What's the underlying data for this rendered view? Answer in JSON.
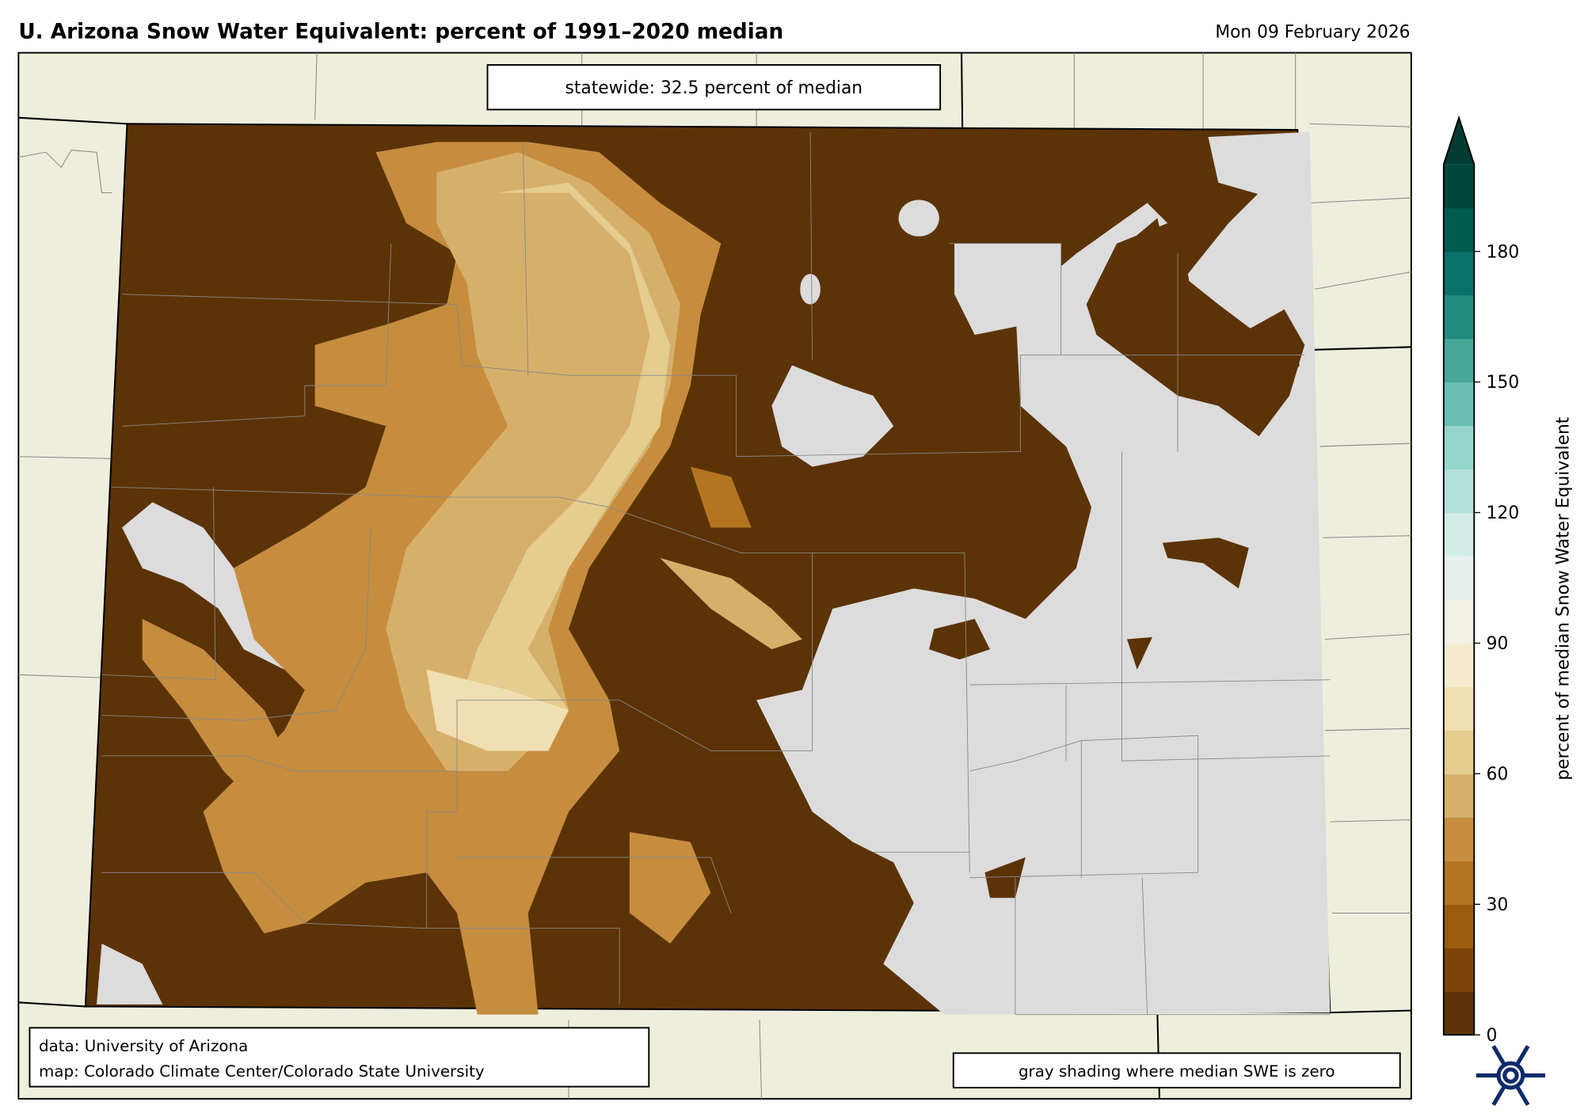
{
  "header": {
    "title": "U. Arizona Snow Water Equivalent: percent of 1991–2020 median",
    "date": "Mon 09 February 2026"
  },
  "map": {
    "statewide_label": "statewide: 32.5 percent of median",
    "attribution_line1": "data: University of Arizona",
    "attribution_line2": "map: Colorado Climate Center/Colorado State University",
    "gray_note": "gray shading where median SWE is zero",
    "colors": {
      "background": "#eeeedc",
      "zero_median": "#dcdcdc",
      "low_swe": "#5c3306"
    }
  },
  "colorbar": {
    "label": "percent of median Snow Water Equivalent",
    "min": 0,
    "max": 200,
    "extend": "max",
    "ticks": [
      "0",
      "30",
      "60",
      "90",
      "120",
      "150",
      "180"
    ],
    "colors": [
      "#5c3306",
      "#7d4408",
      "#995c0f",
      "#b37520",
      "#c68d3f",
      "#d6b06b",
      "#e5cc8f",
      "#f0dfb2",
      "#f5ebd0",
      "#f3f0e8",
      "#e8f0ee",
      "#d4ece8",
      "#b4e2da",
      "#96d6ca",
      "#6cc0b2",
      "#47a796",
      "#238b80",
      "#0a7268",
      "#005b50",
      "#00463a"
    ],
    "extend_color": "#003c30"
  },
  "logo": {
    "icon": "snowflake-logo-icon"
  }
}
